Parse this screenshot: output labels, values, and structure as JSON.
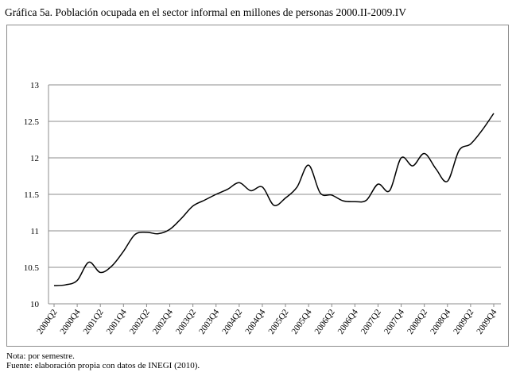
{
  "title": "Gráfica 5a. Población ocupada en el sector informal en millones de personas 2000.II-2009.IV",
  "notes": {
    "note": "Nota: por semestre.",
    "source": "Fuente: elaboración propia con datos de INEGI (2010)."
  },
  "chart_data": {
    "type": "line",
    "title": "Gráfica 5a. Población ocupada en el sector informal en millones de personas 2000.II-2009.IV",
    "xlabel": "",
    "ylabel": "",
    "ylim": [
      10,
      13
    ],
    "yticks": [
      10,
      10.5,
      11,
      11.5,
      12,
      12.5,
      13
    ],
    "grid": true,
    "legend": "none",
    "x_tick_labels": [
      "2000Q2",
      "2000Q4",
      "2001Q2",
      "2001Q4",
      "2002Q2",
      "2002Q4",
      "2003Q2",
      "2003Q4",
      "2004Q2",
      "2004Q4",
      "2005Q2",
      "2005Q4",
      "2006Q2",
      "2006Q4",
      "2007Q2",
      "2007Q4",
      "2008Q2",
      "2008Q4",
      "2009Q2",
      "2009Q4"
    ],
    "series": [
      {
        "name": "Población ocupada en el sector informal",
        "color": "#000000",
        "x": [
          "2000Q2",
          "2000Q3",
          "2000Q4",
          "2001Q1",
          "2001Q2",
          "2001Q3",
          "2001Q4",
          "2002Q1",
          "2002Q2",
          "2002Q3",
          "2002Q4",
          "2003Q1",
          "2003Q2",
          "2003Q3",
          "2003Q4",
          "2004Q1",
          "2004Q2",
          "2004Q3",
          "2004Q4",
          "2005Q1",
          "2005Q2",
          "2005Q3",
          "2005Q4",
          "2006Q1",
          "2006Q2",
          "2006Q3",
          "2006Q4",
          "2007Q1",
          "2007Q2",
          "2007Q3",
          "2007Q4",
          "2008Q1",
          "2008Q2",
          "2008Q3",
          "2008Q4",
          "2009Q1",
          "2009Q2",
          "2009Q3",
          "2009Q4"
        ],
        "values": [
          10.25,
          10.26,
          10.32,
          10.57,
          10.43,
          10.52,
          10.72,
          10.95,
          10.98,
          10.96,
          11.02,
          11.17,
          11.34,
          11.42,
          11.5,
          11.57,
          11.66,
          11.55,
          11.6,
          11.35,
          11.45,
          11.6,
          11.9,
          11.52,
          11.49,
          11.41,
          11.4,
          11.42,
          11.64,
          11.55,
          12.0,
          11.89,
          12.06,
          11.85,
          11.68,
          12.1,
          12.19,
          12.38,
          12.61
        ]
      }
    ]
  }
}
